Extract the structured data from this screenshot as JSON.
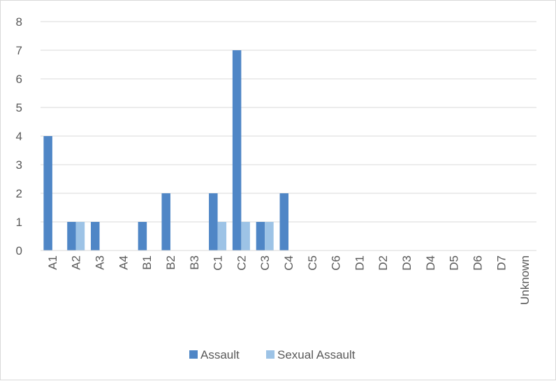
{
  "chart_data": {
    "type": "bar",
    "categories": [
      "A1",
      "A2",
      "A3",
      "A4",
      "B1",
      "B2",
      "B3",
      "C1",
      "C2",
      "C3",
      "C4",
      "C5",
      "C6",
      "D1",
      "D2",
      "D3",
      "D4",
      "D5",
      "D6",
      "D7",
      "Unknown"
    ],
    "series": [
      {
        "name": "Assault",
        "color": "#4f86c6",
        "values": [
          4,
          1,
          1,
          0,
          1,
          2,
          0,
          2,
          7,
          1,
          2,
          0,
          0,
          0,
          0,
          0,
          0,
          0,
          0,
          0,
          0
        ]
      },
      {
        "name": "Sexual Assault",
        "color": "#9dc3e6",
        "values": [
          0,
          1,
          0,
          0,
          0,
          0,
          0,
          1,
          1,
          1,
          0,
          0,
          0,
          0,
          0,
          0,
          0,
          0,
          0,
          0,
          0
        ]
      }
    ],
    "title": "",
    "xlabel": "",
    "ylabel": "",
    "ylim": [
      0,
      8
    ],
    "yticks": [
      0,
      1,
      2,
      3,
      4,
      5,
      6,
      7,
      8
    ],
    "grid": true,
    "legend_position": "bottom"
  }
}
